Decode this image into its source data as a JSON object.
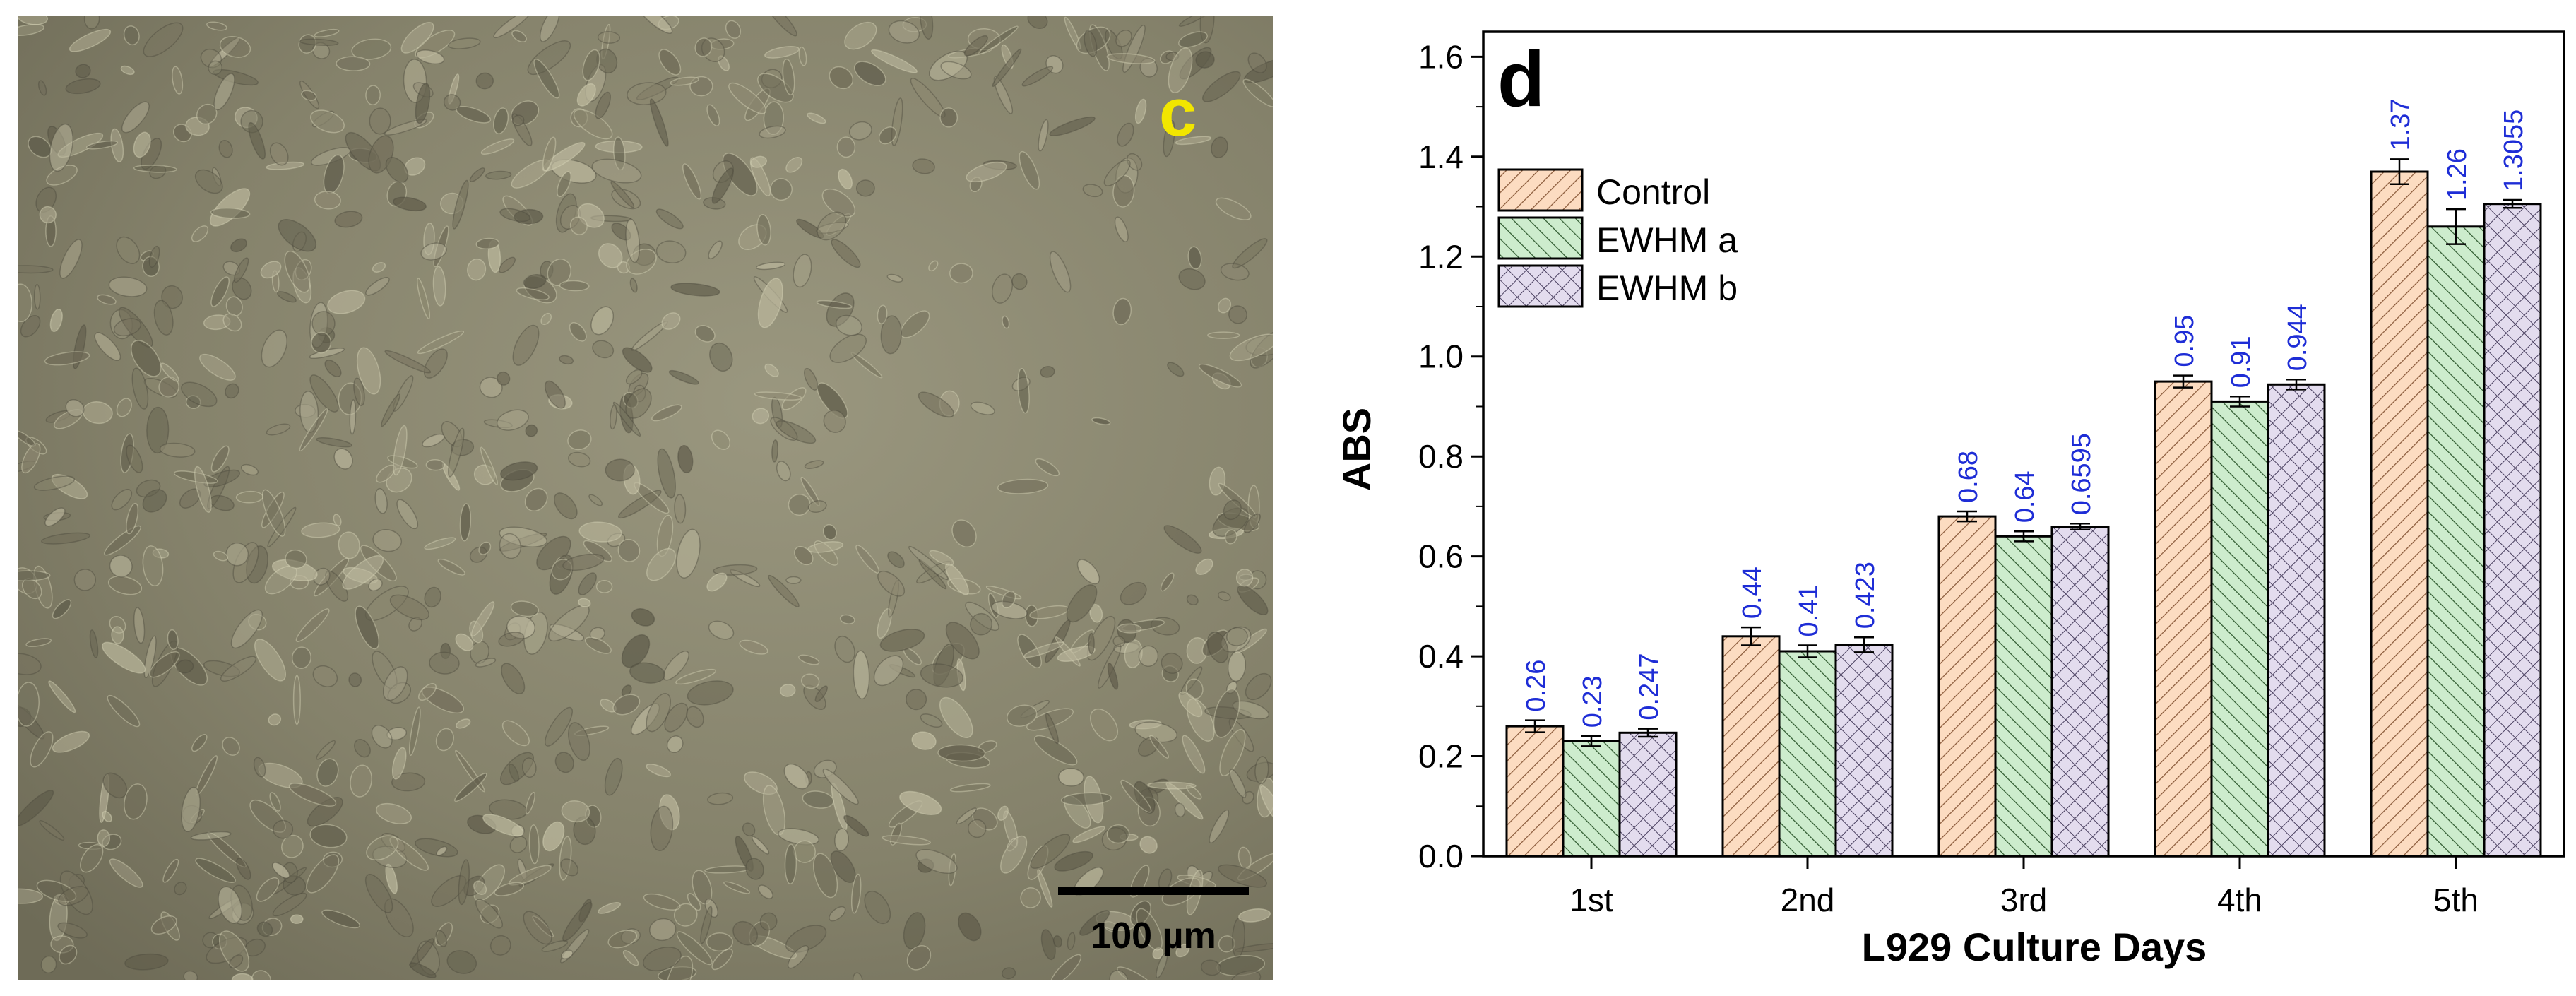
{
  "micrograph": {
    "panel_label": "c",
    "scale_bar_label": "100 µm",
    "colors": {
      "panel_label": "#f2e600",
      "scale_bar": "#000000",
      "background": "#8a8670"
    }
  },
  "chart_data": {
    "type": "bar",
    "panel_label": "d",
    "categories": [
      "1st",
      "2nd",
      "3rd",
      "4th",
      "5th"
    ],
    "series": [
      {
        "name": "Control",
        "values": [
          0.26,
          0.44,
          0.68,
          0.95,
          1.37
        ],
        "value_labels": [
          "0.26",
          "0.44",
          "0.68",
          "0.95",
          "1.37"
        ],
        "errors": [
          0.012,
          0.018,
          0.01,
          0.012,
          0.025
        ],
        "pattern": "diagonal-right",
        "fill": "#fcdcc1"
      },
      {
        "name": "EWHM a",
        "values": [
          0.23,
          0.41,
          0.64,
          0.91,
          1.26
        ],
        "value_labels": [
          "0.23",
          "0.41",
          "0.64",
          "0.91",
          "1.26"
        ],
        "errors": [
          0.01,
          0.012,
          0.01,
          0.01,
          0.035
        ],
        "pattern": "diagonal-left",
        "fill": "#cdeccd"
      },
      {
        "name": "EWHM b",
        "values": [
          0.247,
          0.423,
          0.6595,
          0.944,
          1.3055
        ],
        "value_labels": [
          "0.247",
          "0.423",
          "0.6595",
          "0.944",
          "1.3055"
        ],
        "errors": [
          0.008,
          0.015,
          0.006,
          0.01,
          0.008
        ],
        "pattern": "crosshatch",
        "fill": "#e3dcee"
      }
    ],
    "xlabel": "L929 Culture Days",
    "ylabel": "ABS",
    "ylim": [
      0,
      1.65
    ],
    "yticks": [
      "0.0",
      "0.2",
      "0.4",
      "0.6",
      "0.8",
      "1.0",
      "1.2",
      "1.4",
      "1.6"
    ],
    "grid": false,
    "legend_position": "top-left",
    "value_label_color": "#1e2dd6"
  }
}
